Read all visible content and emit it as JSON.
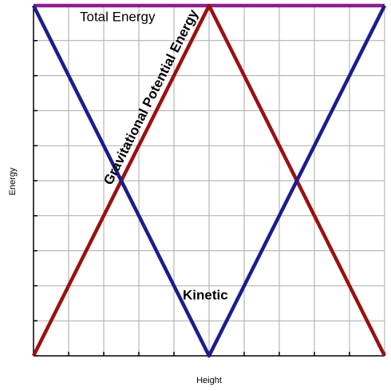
{
  "chart_data": {
    "type": "line",
    "x_label": "Height",
    "y_label": "Energy",
    "x": [
      0,
      5,
      10
    ],
    "series": [
      {
        "name": "Total Energy",
        "color": "#8e1e8e",
        "values": [
          10,
          10,
          10
        ]
      },
      {
        "name": "Gravitational Potential Energy",
        "color": "#9b1010",
        "values": [
          0,
          10,
          0
        ]
      },
      {
        "name": "Kinetic",
        "color": "#1c1c8e",
        "values": [
          10,
          0,
          10
        ]
      }
    ],
    "xlim": [
      0,
      10
    ],
    "ylim": [
      0,
      10
    ],
    "xticks": [
      0,
      1,
      2,
      3,
      4,
      5,
      6,
      7,
      8,
      9,
      10
    ],
    "yticks": [
      0,
      1,
      2,
      3,
      4,
      5,
      6,
      7,
      8,
      9,
      10
    ],
    "grid": true
  }
}
